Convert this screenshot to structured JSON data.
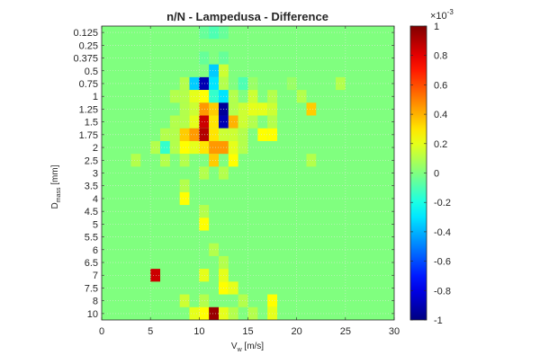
{
  "chart_data": {
    "type": "heatmap",
    "title": "n/N - Lampedusa - Difference",
    "xlabel": {
      "main": "V",
      "sub": "w",
      "unit": " [m/s]"
    },
    "ylabel": {
      "main": "D",
      "sub": "mass",
      "unit": " [mm]"
    },
    "x_ticks": [
      "0",
      "5",
      "10",
      "15",
      "20",
      "25",
      "30"
    ],
    "x_tick_values": [
      0,
      5,
      10,
      15,
      20,
      25,
      30
    ],
    "xlim": [
      0,
      30
    ],
    "y_categories": [
      "0.125",
      "0.25",
      "0.375",
      "0.5",
      "0.75",
      "1",
      "1.25",
      "1.5",
      "1.75",
      "2",
      "2.5",
      "3",
      "3.5",
      "4",
      "4.5",
      "5",
      "5.5",
      "6",
      "6.5",
      "7",
      "7.5",
      "8",
      "10"
    ],
    "grid": true,
    "colormap": "jet",
    "background_value": 5e-05,
    "colorbar": {
      "exponent_label": "×10",
      "exponent_power": "-3",
      "tick_labels": [
        "1",
        "0.8",
        "0.6",
        "0.4",
        "0.2",
        "0",
        "-0.2",
        "-0.4",
        "-0.6",
        "-0.8",
        "-1"
      ],
      "tick_values": [
        1,
        0.8,
        0.6,
        0.4,
        0.2,
        0,
        -0.2,
        -0.4,
        -0.6,
        -0.8,
        -1
      ],
      "range": [
        -1,
        1
      ]
    },
    "cells_units": "value ×10^-3, x = V_w bin center [m/s], y = D_mass category",
    "cells": [
      {
        "x": 10.5,
        "y": "0.125",
        "v": -0.05
      },
      {
        "x": 11.5,
        "y": "0.125",
        "v": -0.1
      },
      {
        "x": 12.5,
        "y": "0.125",
        "v": -0.05
      },
      {
        "x": 10.5,
        "y": "0.375",
        "v": -0.05
      },
      {
        "x": 12.5,
        "y": "0.375",
        "v": -0.05
      },
      {
        "x": 11.5,
        "y": "0.5",
        "v": -0.35
      },
      {
        "x": 12.5,
        "y": "0.5",
        "v": 0.15
      },
      {
        "x": 8.5,
        "y": "0.75",
        "v": 0.1
      },
      {
        "x": 9.5,
        "y": "0.75",
        "v": -0.35
      },
      {
        "x": 10.5,
        "y": "0.75",
        "v": -0.9
      },
      {
        "x": 11.5,
        "y": "0.75",
        "v": -0.3
      },
      {
        "x": 12.5,
        "y": "0.75",
        "v": 0.1
      },
      {
        "x": 14.5,
        "y": "0.75",
        "v": -0.1
      },
      {
        "x": 15.5,
        "y": "0.75",
        "v": 0.05
      },
      {
        "x": 19.5,
        "y": "0.75",
        "v": 0.05
      },
      {
        "x": 24.5,
        "y": "0.75",
        "v": 0.1
      },
      {
        "x": 7.5,
        "y": "1",
        "v": 0.1
      },
      {
        "x": 8.5,
        "y": "1",
        "v": 0.1
      },
      {
        "x": 9.5,
        "y": "1",
        "v": 0.2
      },
      {
        "x": 10.5,
        "y": "1",
        "v": 0.25
      },
      {
        "x": 11.5,
        "y": "1",
        "v": -0.15
      },
      {
        "x": 12.5,
        "y": "1",
        "v": -0.3
      },
      {
        "x": 13.5,
        "y": "1",
        "v": 0.1
      },
      {
        "x": 15.5,
        "y": "1",
        "v": 0.15
      },
      {
        "x": 17.5,
        "y": "1",
        "v": 0.1
      },
      {
        "x": 20.5,
        "y": "1",
        "v": 0.1
      },
      {
        "x": 8.5,
        "y": "1.25",
        "v": 0.1
      },
      {
        "x": 9.5,
        "y": "1.25",
        "v": 0.15
      },
      {
        "x": 10.5,
        "y": "1.25",
        "v": 0.45
      },
      {
        "x": 11.5,
        "y": "1.25",
        "v": 0.35
      },
      {
        "x": 12.5,
        "y": "1.25",
        "v": -0.95
      },
      {
        "x": 13.5,
        "y": "1.25",
        "v": 0.1
      },
      {
        "x": 14.5,
        "y": "1.25",
        "v": 0.15
      },
      {
        "x": 15.5,
        "y": "1.25",
        "v": 0.2
      },
      {
        "x": 16.5,
        "y": "1.25",
        "v": 0.2
      },
      {
        "x": 17.5,
        "y": "1.25",
        "v": 0.15
      },
      {
        "x": 21.5,
        "y": "1.25",
        "v": 0.35
      },
      {
        "x": 7.5,
        "y": "1.5",
        "v": 0.1
      },
      {
        "x": 8.5,
        "y": "1.5",
        "v": 0.1
      },
      {
        "x": 9.5,
        "y": "1.5",
        "v": 0.2
      },
      {
        "x": 10.5,
        "y": "1.5",
        "v": 0.85
      },
      {
        "x": 11.5,
        "y": "1.5",
        "v": 0.3
      },
      {
        "x": 12.5,
        "y": "1.5",
        "v": -0.9
      },
      {
        "x": 13.5,
        "y": "1.5",
        "v": 0.4
      },
      {
        "x": 14.5,
        "y": "1.5",
        "v": 0.15
      },
      {
        "x": 15.5,
        "y": "1.5",
        "v": 0.1
      },
      {
        "x": 17.5,
        "y": "1.5",
        "v": 0.1
      },
      {
        "x": 6.5,
        "y": "1.75",
        "v": 0.1
      },
      {
        "x": 7.5,
        "y": "1.75",
        "v": 0.1
      },
      {
        "x": 8.5,
        "y": "1.75",
        "v": 0.35
      },
      {
        "x": 9.5,
        "y": "1.75",
        "v": 0.45
      },
      {
        "x": 10.5,
        "y": "1.75",
        "v": 0.9
      },
      {
        "x": 11.5,
        "y": "1.75",
        "v": 0.3
      },
      {
        "x": 12.5,
        "y": "1.75",
        "v": 0.15
      },
      {
        "x": 13.5,
        "y": "1.75",
        "v": 0.15
      },
      {
        "x": 14.5,
        "y": "1.75",
        "v": 0.1
      },
      {
        "x": 16.5,
        "y": "1.75",
        "v": 0.25
      },
      {
        "x": 17.5,
        "y": "1.75",
        "v": 0.25
      },
      {
        "x": 5.5,
        "y": "2",
        "v": 0.1
      },
      {
        "x": 6.5,
        "y": "2",
        "v": -0.15
      },
      {
        "x": 7.5,
        "y": "2",
        "v": 0.1
      },
      {
        "x": 8.5,
        "y": "2",
        "v": 0.25
      },
      {
        "x": 9.5,
        "y": "2",
        "v": 0.2
      },
      {
        "x": 10.5,
        "y": "2",
        "v": 0.3
      },
      {
        "x": 11.5,
        "y": "2",
        "v": 0.45
      },
      {
        "x": 12.5,
        "y": "2",
        "v": 0.45
      },
      {
        "x": 13.5,
        "y": "2",
        "v": 0.2
      },
      {
        "x": 14.5,
        "y": "2",
        "v": 0.1
      },
      {
        "x": 3.5,
        "y": "2.5",
        "v": 0.1
      },
      {
        "x": 6.5,
        "y": "2.5",
        "v": 0.1
      },
      {
        "x": 8.5,
        "y": "2.5",
        "v": 0.1
      },
      {
        "x": 11.5,
        "y": "2.5",
        "v": 0.35
      },
      {
        "x": 13.5,
        "y": "2.5",
        "v": 0.25
      },
      {
        "x": 21.5,
        "y": "2.5",
        "v": 0.1
      },
      {
        "x": 10.5,
        "y": "3",
        "v": 0.1
      },
      {
        "x": 12.5,
        "y": "3",
        "v": 0.1
      },
      {
        "x": 8.5,
        "y": "3.5",
        "v": 0.1
      },
      {
        "x": 8.5,
        "y": "4",
        "v": 0.25
      },
      {
        "x": 10.5,
        "y": "4.5",
        "v": 0.1
      },
      {
        "x": 10.5,
        "y": "5",
        "v": 0.25
      },
      {
        "x": 11.5,
        "y": "6",
        "v": 0.1
      },
      {
        "x": 12.5,
        "y": "6.5",
        "v": 0.1
      },
      {
        "x": 5.5,
        "y": "7",
        "v": 0.85
      },
      {
        "x": 10.5,
        "y": "7",
        "v": 0.2
      },
      {
        "x": 12.5,
        "y": "7",
        "v": 0.2
      },
      {
        "x": 12.5,
        "y": "7.5",
        "v": 0.25
      },
      {
        "x": 13.5,
        "y": "7.5",
        "v": 0.2
      },
      {
        "x": 8.5,
        "y": "8",
        "v": 0.15
      },
      {
        "x": 10.5,
        "y": "8",
        "v": 0.1
      },
      {
        "x": 14.5,
        "y": "8",
        "v": 0.1
      },
      {
        "x": 17.5,
        "y": "8",
        "v": 0.25
      },
      {
        "x": 9.5,
        "y": "10",
        "v": 0.2
      },
      {
        "x": 10.5,
        "y": "10",
        "v": 0.25
      },
      {
        "x": 11.5,
        "y": "10",
        "v": 0.95
      },
      {
        "x": 12.5,
        "y": "10",
        "v": 0.2
      },
      {
        "x": 13.5,
        "y": "10",
        "v": 0.1
      },
      {
        "x": 15.5,
        "y": "10",
        "v": 0.1
      },
      {
        "x": 17.5,
        "y": "10",
        "v": 0.2
      }
    ]
  }
}
